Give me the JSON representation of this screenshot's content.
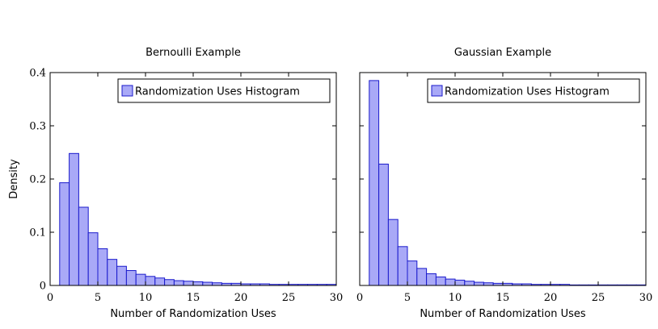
{
  "chart_data": [
    {
      "type": "bar",
      "title": "Bernoulli Example",
      "xlabel": "Number of Randomization Uses",
      "ylabel": "Density",
      "xlim": [
        0,
        30
      ],
      "ylim": [
        0,
        0.4
      ],
      "x_ticks": [
        "0",
        "5",
        "10",
        "15",
        "20",
        "25",
        "30"
      ],
      "y_ticks": [
        "0",
        "0.1",
        "0.2",
        "0.3",
        "0.4"
      ],
      "grid": false,
      "legend_position": "top-right",
      "series": [
        {
          "name": "Randomization Uses Histogram",
          "bin_edges": [
            1,
            2,
            3,
            4,
            5,
            6,
            7,
            8,
            9,
            10,
            11,
            12,
            13,
            14,
            15,
            16,
            17,
            18,
            19,
            20,
            21,
            22,
            23,
            24,
            25,
            26,
            27,
            28,
            29,
            30
          ],
          "values": [
            0.193,
            0.248,
            0.147,
            0.099,
            0.069,
            0.049,
            0.036,
            0.028,
            0.021,
            0.017,
            0.014,
            0.011,
            0.009,
            0.008,
            0.007,
            0.006,
            0.005,
            0.004,
            0.004,
            0.003,
            0.003,
            0.003,
            0.002,
            0.002,
            0.002,
            0.002,
            0.002,
            0.002,
            0.002
          ]
        }
      ],
      "colors": {
        "fill": "#a9a9f7",
        "stroke": "#1a1acc"
      }
    },
    {
      "type": "bar",
      "title": "Gaussian Example",
      "xlabel": "Number of Randomization Uses",
      "ylabel": "",
      "xlim": [
        0,
        30
      ],
      "ylim": [
        0,
        0.4
      ],
      "x_ticks": [
        "0",
        "5",
        "10",
        "15",
        "20",
        "25",
        "30"
      ],
      "y_ticks": [],
      "grid": false,
      "legend_position": "top-right",
      "series": [
        {
          "name": "Randomization Uses Histogram",
          "bin_edges": [
            1,
            2,
            3,
            4,
            5,
            6,
            7,
            8,
            9,
            10,
            11,
            12,
            13,
            14,
            15,
            16,
            17,
            18,
            19,
            20,
            21,
            22,
            23,
            24,
            25,
            26,
            27,
            28,
            29,
            30
          ],
          "values": [
            0.385,
            0.228,
            0.124,
            0.073,
            0.046,
            0.032,
            0.022,
            0.016,
            0.012,
            0.01,
            0.008,
            0.006,
            0.005,
            0.004,
            0.004,
            0.003,
            0.003,
            0.002,
            0.002,
            0.002,
            0.002,
            0.001,
            0.001,
            0.001,
            0.001,
            0.001,
            0.001,
            0.001,
            0.001
          ]
        }
      ],
      "colors": {
        "fill": "#a9a9f7",
        "stroke": "#1a1acc"
      }
    }
  ]
}
